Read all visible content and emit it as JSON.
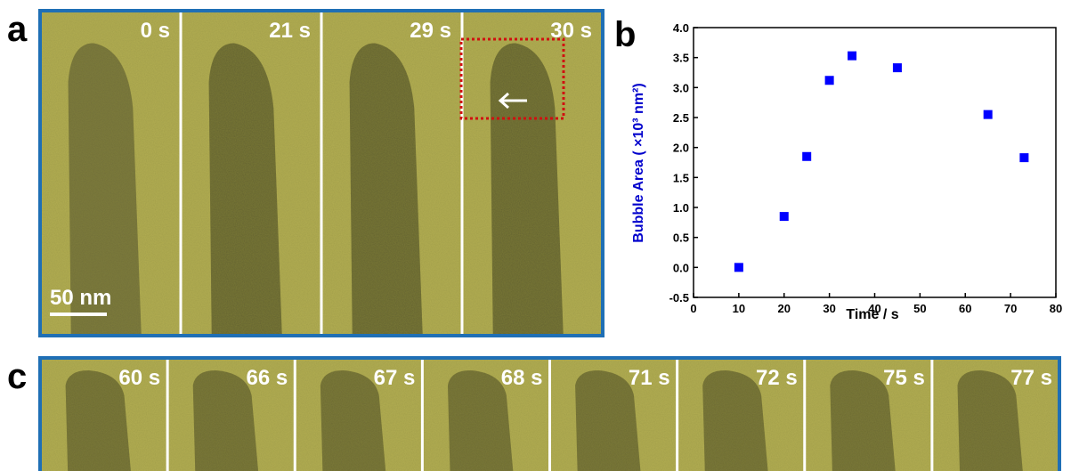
{
  "panel_a": {
    "label": "a",
    "frames": [
      "0 s",
      "21 s",
      "29 s",
      "30 s"
    ],
    "scale_bar": "50 nm"
  },
  "panel_b": {
    "label": "b"
  },
  "panel_c": {
    "label": "c",
    "frames": [
      "60 s",
      "66 s",
      "67 s",
      "68 s",
      "71 s",
      "72 s",
      "75 s",
      "77 s"
    ]
  },
  "chart_data": {
    "type": "scatter",
    "xlabel": "Time / s",
    "ylabel": "Bubble Area ( ×10³ nm²)",
    "x": [
      10,
      20,
      25,
      30,
      35,
      45,
      65,
      73
    ],
    "values": [
      0,
      0.85,
      1.85,
      3.12,
      3.53,
      3.33,
      2.55,
      1.83
    ],
    "color": "#0000ff",
    "xlim": [
      0,
      80
    ],
    "xticks": [
      0,
      10,
      20,
      30,
      40,
      50,
      60,
      70,
      80
    ],
    "ylim": [
      -0.5,
      4.0
    ],
    "yticks": [
      -0.5,
      {
        "value": 0,
        "label": "0.0"
      },
      0.5,
      {
        "value": 1,
        "label": "1.0"
      },
      1.5,
      {
        "value": 2,
        "label": "2.0"
      },
      2.5,
      {
        "value": 3,
        "label": "3.0"
      },
      3.5,
      {
        "value": 4,
        "label": "4.0"
      }
    ],
    "grid": false
  }
}
